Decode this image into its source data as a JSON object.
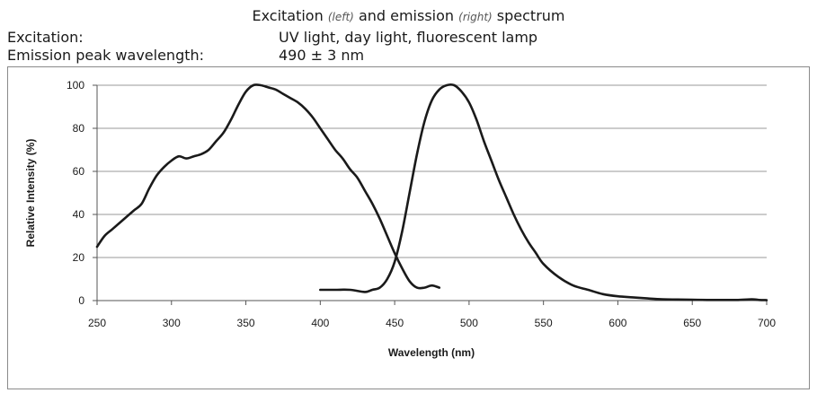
{
  "header": {
    "title_pre": "Excitation",
    "title_note_left": "(left)",
    "title_mid": "and emission",
    "title_note_right": "(right)",
    "title_post": "spectrum"
  },
  "info": {
    "excitation_label": "Excitation:",
    "excitation_value": "UV light, day light, fluorescent lamp",
    "emission_label": "Emission peak wavelength:",
    "emission_value": "490 ± 3 nm"
  },
  "chart_data": {
    "type": "line",
    "xlabel": "Wavelength (nm)",
    "ylabel": "Relative Intensity (%)",
    "xlim": [
      250,
      700
    ],
    "ylim": [
      0,
      100
    ],
    "x_ticks": [
      250,
      300,
      350,
      400,
      450,
      500,
      550,
      600,
      650,
      700
    ],
    "y_ticks": [
      0,
      20,
      40,
      60,
      80,
      100
    ],
    "grid": "horizontal",
    "line_color": "#1a1a1a",
    "series": [
      {
        "x": [
          250,
          255,
          260,
          265,
          270,
          275,
          280,
          285,
          290,
          295,
          300,
          305,
          310,
          315,
          320,
          325,
          330,
          335,
          340,
          345,
          350,
          355,
          360,
          365,
          370,
          375,
          380,
          385,
          390,
          395,
          400,
          405,
          410,
          415,
          420,
          425,
          430,
          435,
          440,
          445,
          450,
          455,
          460,
          465,
          470,
          475,
          480
        ],
        "y": [
          25,
          30,
          33,
          36,
          39,
          42,
          45,
          52,
          58,
          62,
          65,
          67,
          66,
          67,
          68,
          70,
          74,
          78,
          84,
          91,
          97,
          100,
          100,
          99,
          98,
          96,
          94,
          92,
          89,
          85,
          80,
          75,
          70,
          66,
          61,
          57,
          51,
          45,
          38,
          30,
          22,
          15,
          9,
          6,
          6,
          7,
          6
        ]
      },
      {
        "x": [
          400,
          410,
          420,
          430,
          435,
          440,
          445,
          450,
          455,
          460,
          465,
          470,
          475,
          480,
          485,
          490,
          495,
          500,
          505,
          510,
          515,
          520,
          525,
          530,
          535,
          540,
          545,
          550,
          560,
          570,
          580,
          590,
          600,
          610,
          620,
          630,
          640,
          650,
          660,
          670,
          680,
          690,
          695,
          700
        ],
        "y": [
          5,
          5,
          5,
          4,
          5,
          6,
          10,
          18,
          32,
          50,
          68,
          83,
          93,
          98,
          100,
          100,
          97,
          92,
          84,
          74,
          65,
          56,
          48,
          40,
          33,
          27,
          22,
          17,
          11,
          7,
          5,
          3,
          2,
          1.5,
          1,
          0.6,
          0.5,
          0.4,
          0.3,
          0.3,
          0.3,
          0.6,
          0.3,
          0.2
        ]
      }
    ]
  }
}
